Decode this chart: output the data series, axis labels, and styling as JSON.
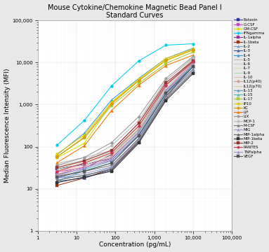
{
  "title": "Mouse Cytokine/Chemokine Magnetic Bead Panel I\nStandard Curves",
  "xlabel": "Concentration (pg/mL)",
  "ylabel": "Median Fluorescence Intensity (MFI)",
  "x_conc": [
    3.2,
    16,
    80,
    400,
    2000,
    10000
  ],
  "series": [
    {
      "name": "Eotaxin",
      "color": "#3333aa",
      "marker": "s",
      "y": [
        30,
        38,
        52,
        220,
        2800,
        12000
      ]
    },
    {
      "name": "G-CSF",
      "color": "#cc44cc",
      "marker": "s",
      "y": [
        25,
        32,
        48,
        180,
        2200,
        10000
      ]
    },
    {
      "name": "GM-CSF",
      "color": "#dddd00",
      "marker": "o",
      "y": [
        55,
        120,
        1100,
        3800,
        11000,
        20000
      ]
    },
    {
      "name": "IFNgamma",
      "color": "#00ccee",
      "marker": "o",
      "y": [
        110,
        420,
        2800,
        11000,
        26000,
        28000
      ]
    },
    {
      "name": "IL-1alpha",
      "color": "#993399",
      "marker": "s",
      "y": [
        22,
        30,
        65,
        260,
        2900,
        10500
      ]
    },
    {
      "name": "IL-1beta",
      "color": "#993311",
      "marker": "s",
      "y": [
        12,
        18,
        30,
        140,
        1400,
        10000
      ]
    },
    {
      "name": "IL-2",
      "color": "#7799cc",
      "marker": "^",
      "y": [
        18,
        20,
        32,
        160,
        1900,
        9000
      ]
    },
    {
      "name": "IL-3",
      "color": "#445599",
      "marker": "^",
      "y": [
        15,
        18,
        28,
        130,
        1600,
        8000
      ]
    },
    {
      "name": "IL-4",
      "color": "#3399dd",
      "marker": "^",
      "y": [
        65,
        210,
        1300,
        4200,
        12500,
        22000
      ]
    },
    {
      "name": "IL-5",
      "color": "#bbbbbb",
      "marker": "None",
      "y": [
        40,
        55,
        82,
        370,
        3700,
        13000
      ]
    },
    {
      "name": "IL-6",
      "color": "#ccccbb",
      "marker": "None",
      "y": [
        35,
        48,
        76,
        310,
        3100,
        12000
      ]
    },
    {
      "name": "IL-7",
      "color": "#ddddaa",
      "marker": "None",
      "y": [
        30,
        44,
        70,
        285,
        2800,
        11500
      ]
    },
    {
      "name": "IL-9",
      "color": "#aaddaa",
      "marker": "None",
      "y": [
        28,
        40,
        66,
        265,
        2500,
        11000
      ]
    },
    {
      "name": "IL-10",
      "color": "#ddbbaa",
      "marker": "None",
      "y": [
        25,
        37,
        60,
        245,
        2300,
        10500
      ]
    },
    {
      "name": "IL12(p40)",
      "color": "#cc9999",
      "marker": "o",
      "y": [
        22,
        34,
        56,
        225,
        2100,
        10000
      ]
    },
    {
      "name": "IL12(p70)",
      "color": "#ddccaa",
      "marker": "None",
      "y": [
        20,
        31,
        50,
        205,
        2000,
        9500
      ]
    },
    {
      "name": "IL-13",
      "color": "#6699cc",
      "marker": "^",
      "y": [
        18,
        29,
        46,
        195,
        1900,
        9000
      ]
    },
    {
      "name": "IL-15",
      "color": "#55bbbb",
      "marker": "^",
      "y": [
        15,
        27,
        41,
        182,
        1750,
        8500
      ]
    },
    {
      "name": "IL-17",
      "color": "#aacc33",
      "marker": "s",
      "y": [
        58,
        160,
        950,
        3200,
        9500,
        18000
      ]
    },
    {
      "name": "IP10",
      "color": "#ddcc00",
      "marker": "o",
      "y": [
        68,
        190,
        1150,
        4000,
        12500,
        21000
      ]
    },
    {
      "name": "KC",
      "color": "#dd9900",
      "marker": "o",
      "y": [
        58,
        170,
        1050,
        3700,
        11500,
        20000
      ]
    },
    {
      "name": "LIF",
      "color": "#ee7700",
      "marker": "^",
      "y": [
        42,
        105,
        730,
        2900,
        8500,
        15000
      ]
    },
    {
      "name": "LIX",
      "color": "#999999",
      "marker": "o",
      "y": [
        36,
        56,
        125,
        520,
        4200,
        14000
      ]
    },
    {
      "name": "MCP-1",
      "color": "#bbbbbb",
      "marker": "o",
      "y": [
        32,
        46,
        105,
        420,
        3700,
        13000
      ]
    },
    {
      "name": "M-CSF",
      "color": "#777777",
      "marker": "^",
      "y": [
        20,
        26,
        36,
        155,
        1600,
        7000
      ]
    },
    {
      "name": "MIG",
      "color": "#9999cc",
      "marker": "^",
      "y": [
        18,
        23,
        33,
        145,
        1450,
        6500
      ]
    },
    {
      "name": "MIP-1alpha",
      "color": "#666666",
      "marker": "^",
      "y": [
        16,
        21,
        29,
        133,
        1350,
        6000
      ]
    },
    {
      "name": "MIP-1beta",
      "color": "#333333",
      "marker": "s",
      "y": [
        14,
        19,
        26,
        122,
        1250,
        5500
      ]
    },
    {
      "name": "MIP-2",
      "color": "#993333",
      "marker": "s",
      "y": [
        32,
        46,
        82,
        360,
        3300,
        11000
      ]
    },
    {
      "name": "RANTES",
      "color": "#cc3355",
      "marker": "o",
      "y": [
        26,
        41,
        72,
        310,
        2900,
        10500
      ]
    },
    {
      "name": "TNFalpha",
      "color": "#9999dd",
      "marker": "^",
      "y": [
        21,
        31,
        52,
        225,
        2100,
        9000
      ]
    },
    {
      "name": "VEGF",
      "color": "#555555",
      "marker": "s",
      "y": [
        19,
        26,
        41,
        185,
        1850,
        8000
      ]
    }
  ],
  "bg_color": "#e8e8e8",
  "plot_bg_color": "#ffffff",
  "xlim": [
    1,
    100000
  ],
  "ylim": [
    1,
    100000
  ],
  "xticks": [
    1,
    10,
    100,
    1000,
    10000,
    100000
  ],
  "yticks": [
    1,
    10,
    100,
    1000,
    10000,
    100000
  ],
  "xtick_labels": [
    "1",
    "10",
    "100",
    "1,000",
    "10,000",
    "100,000"
  ],
  "ytick_labels": [
    "1",
    "10",
    "100",
    "1,000",
    "10,000",
    "100,000"
  ]
}
